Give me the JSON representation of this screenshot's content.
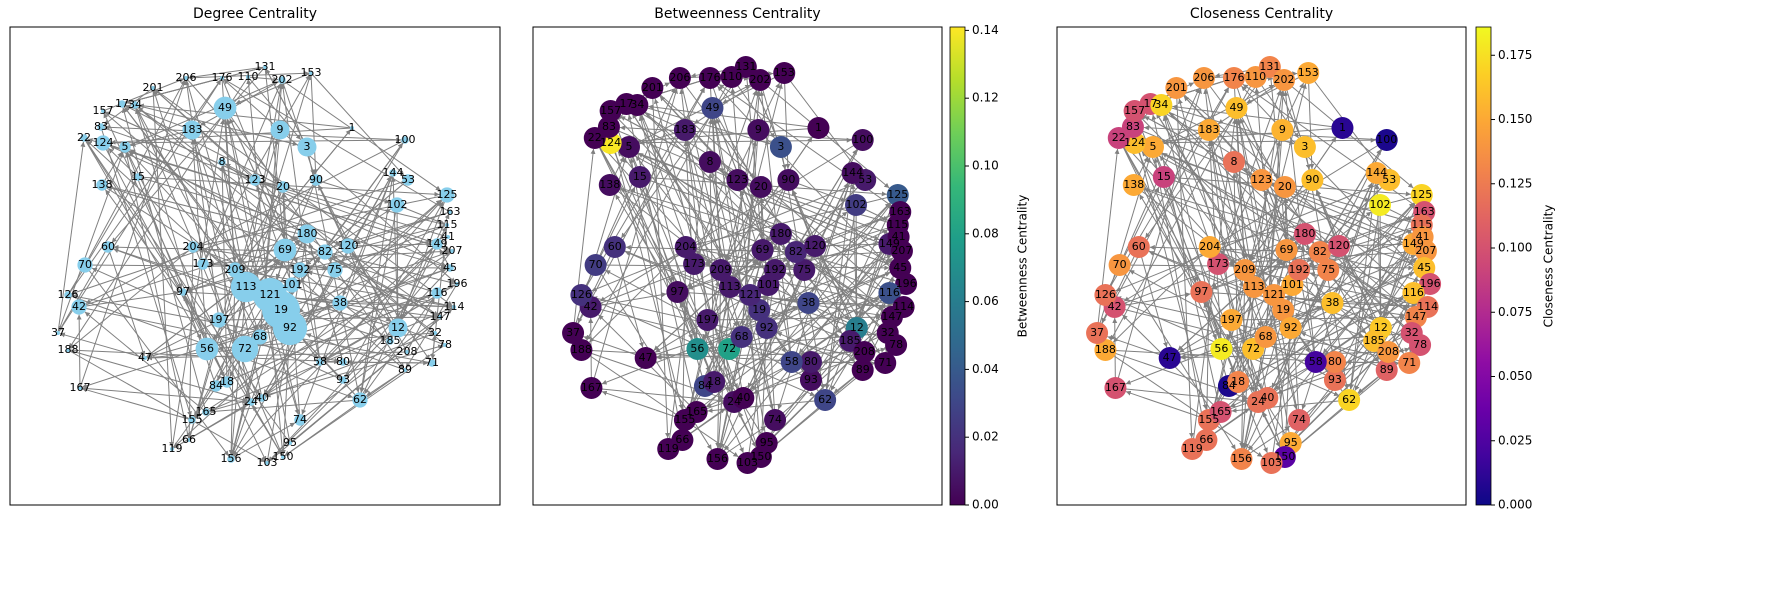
{
  "chart_data": [
    {
      "type": "network",
      "title": "Degree Centrality",
      "categories": [
        "49",
        "9",
        "3",
        "183",
        "8",
        "123",
        "20",
        "90",
        "1",
        "53",
        "144",
        "102",
        "125",
        "163",
        "115",
        "149",
        "41",
        "207",
        "45",
        "196",
        "116",
        "114",
        "147",
        "32",
        "78",
        "71",
        "89",
        "12",
        "185",
        "208",
        "62",
        "93",
        "80",
        "58",
        "74",
        "95",
        "150",
        "103",
        "156",
        "119",
        "66",
        "155",
        "165",
        "84",
        "18",
        "24",
        "40",
        "56",
        "72",
        "68",
        "197",
        "97",
        "42",
        "126",
        "70",
        "60",
        "138",
        "15",
        "5",
        "124",
        "83",
        "22",
        "17",
        "34",
        "157",
        "201",
        "206",
        "176",
        "110",
        "131",
        "202",
        "153",
        "19",
        "92",
        "121",
        "113",
        "101",
        "38",
        "75",
        "82",
        "120",
        "180",
        "69",
        "192",
        "209",
        "173",
        "204",
        "100",
        "188",
        "167",
        "37",
        "47"
      ],
      "values": [
        0.03,
        0.025,
        0.025,
        0.025,
        0.01,
        0.015,
        0.015,
        0.015,
        0.005,
        0.015,
        0.01,
        0.02,
        0.02,
        0.005,
        0.005,
        0.015,
        0.005,
        0.005,
        0.01,
        0.005,
        0.015,
        0.005,
        0.005,
        0.005,
        0.005,
        0.01,
        0.005,
        0.025,
        0.01,
        0.005,
        0.02,
        0.01,
        0.01,
        0.01,
        0.015,
        0.005,
        0.005,
        0.005,
        0.01,
        0.005,
        0.005,
        0.01,
        0.01,
        0.015,
        0.015,
        0.01,
        0.01,
        0.03,
        0.035,
        0.02,
        0.02,
        0.01,
        0.02,
        0.01,
        0.02,
        0.015,
        0.015,
        0.01,
        0.015,
        0.02,
        0.01,
        0.01,
        0.01,
        0.01,
        0.005,
        0.005,
        0.005,
        0.005,
        0.005,
        0.005,
        0.01,
        0.005,
        0.05,
        0.045,
        0.045,
        0.04,
        0.02,
        0.02,
        0.02,
        0.02,
        0.02,
        0.025,
        0.03,
        0.02,
        0.02,
        0.015,
        0.015,
        0.01,
        0.005,
        0.005,
        0.005,
        0.005
      ],
      "color": "#87ceeb",
      "edge_color": "#808080"
    },
    {
      "type": "network",
      "title": "Betweenness Centrality",
      "categories": [
        "49",
        "9",
        "3",
        "183",
        "8",
        "123",
        "20",
        "90",
        "1",
        "53",
        "144",
        "102",
        "125",
        "163",
        "115",
        "149",
        "41",
        "207",
        "45",
        "196",
        "116",
        "114",
        "147",
        "32",
        "78",
        "71",
        "89",
        "12",
        "185",
        "208",
        "62",
        "93",
        "80",
        "58",
        "74",
        "95",
        "150",
        "103",
        "156",
        "119",
        "66",
        "155",
        "165",
        "84",
        "18",
        "24",
        "40",
        "56",
        "72",
        "68",
        "197",
        "97",
        "42",
        "126",
        "70",
        "60",
        "138",
        "15",
        "5",
        "124",
        "83",
        "22",
        "17",
        "34",
        "157",
        "201",
        "206",
        "176",
        "110",
        "131",
        "202",
        "153",
        "19",
        "92",
        "121",
        "113",
        "101",
        "38",
        "75",
        "82",
        "120",
        "180",
        "69",
        "192",
        "209",
        "173",
        "204",
        "100",
        "188",
        "167",
        "37",
        "47"
      ],
      "values": [
        0.03,
        0.005,
        0.035,
        0.01,
        0.005,
        0.005,
        0.005,
        0.005,
        0,
        0.01,
        0.005,
        0.025,
        0.04,
        0,
        0,
        0.01,
        0,
        0,
        0,
        0,
        0.035,
        0,
        0,
        0,
        0,
        0,
        0,
        0.06,
        0.01,
        0,
        0.03,
        0.005,
        0.01,
        0.03,
        0.005,
        0,
        0,
        0,
        0,
        0,
        0,
        0,
        0,
        0.03,
        0.01,
        0.005,
        0,
        0.07,
        0.08,
        0.02,
        0.01,
        0.005,
        0.01,
        0.02,
        0.025,
        0.02,
        0.005,
        0.01,
        0.005,
        0.14,
        0,
        0,
        0,
        0,
        0,
        0,
        0,
        0,
        0,
        0,
        0,
        0,
        0.02,
        0.02,
        0.015,
        0.01,
        0.01,
        0.03,
        0.01,
        0.015,
        0.01,
        0.01,
        0.01,
        0.01,
        0.01,
        0.01,
        0.01,
        0.005,
        0,
        0,
        0,
        0
      ],
      "colormap": "viridis",
      "edge_color": "#808080",
      "colorbar_label": "Betweenness Centrality",
      "ylim": [
        0,
        0.141
      ],
      "yticks": [
        {
          "value": 0,
          "label": "0.00"
        },
        {
          "value": 0.02,
          "label": "0.02"
        },
        {
          "value": 0.04,
          "label": "0.04"
        },
        {
          "value": 0.06,
          "label": "0.06"
        },
        {
          "value": 0.08,
          "label": "0.08"
        },
        {
          "value": 0.1,
          "label": "0.10"
        },
        {
          "value": 0.12,
          "label": "0.12"
        },
        {
          "value": 0.14,
          "label": "0.14"
        }
      ]
    },
    {
      "type": "network",
      "title": "Closeness Centrality",
      "categories": [
        "49",
        "9",
        "3",
        "183",
        "8",
        "123",
        "20",
        "90",
        "1",
        "53",
        "144",
        "102",
        "125",
        "163",
        "115",
        "149",
        "41",
        "207",
        "45",
        "196",
        "116",
        "114",
        "147",
        "32",
        "78",
        "71",
        "89",
        "12",
        "185",
        "208",
        "62",
        "93",
        "80",
        "58",
        "74",
        "95",
        "150",
        "103",
        "156",
        "119",
        "66",
        "155",
        "165",
        "84",
        "18",
        "24",
        "40",
        "56",
        "72",
        "68",
        "197",
        "97",
        "42",
        "126",
        "70",
        "60",
        "138",
        "15",
        "5",
        "124",
        "83",
        "22",
        "17",
        "34",
        "157",
        "201",
        "206",
        "176",
        "110",
        "131",
        "202",
        "153",
        "19",
        "92",
        "121",
        "113",
        "101",
        "38",
        "75",
        "82",
        "120",
        "180",
        "69",
        "192",
        "209",
        "173",
        "204",
        "100",
        "188",
        "167",
        "37",
        "47"
      ],
      "values": [
        0.16,
        0.155,
        0.16,
        0.15,
        0.12,
        0.14,
        0.14,
        0.16,
        0.01,
        0.16,
        0.15,
        0.18,
        0.17,
        0.1,
        0.12,
        0.15,
        0.14,
        0.14,
        0.16,
        0.1,
        0.16,
        0.12,
        0.13,
        0.1,
        0.1,
        0.13,
        0.11,
        0.165,
        0.16,
        0.14,
        0.17,
        0.12,
        0.13,
        0.02,
        0.11,
        0.15,
        0.03,
        0.12,
        0.13,
        0.12,
        0.12,
        0.12,
        0.1,
        0.005,
        0.13,
        0.12,
        0.12,
        0.18,
        0.16,
        0.14,
        0.15,
        0.12,
        0.1,
        0.12,
        0.14,
        0.12,
        0.15,
        0.09,
        0.15,
        0.16,
        0.09,
        0.09,
        0.1,
        0.17,
        0.1,
        0.14,
        0.14,
        0.13,
        0.14,
        0.13,
        0.14,
        0.15,
        0.14,
        0.15,
        0.14,
        0.14,
        0.15,
        0.16,
        0.13,
        0.13,
        0.1,
        0.1,
        0.14,
        0.12,
        0.14,
        0.1,
        0.15,
        0.005,
        0.15,
        0.1,
        0.12,
        0.01
      ],
      "colormap": "plasma",
      "edge_color": "#808080",
      "colorbar_label": "Closeness Centrality",
      "ylim": [
        0,
        0.186
      ],
      "yticks": [
        {
          "value": 0,
          "label": "0.000"
        },
        {
          "value": 0.025,
          "label": "0.025"
        },
        {
          "value": 0.05,
          "label": "0.050"
        },
        {
          "value": 0.075,
          "label": "0.075"
        },
        {
          "value": 0.1,
          "label": "0.100"
        },
        {
          "value": 0.125,
          "label": "0.125"
        },
        {
          "value": 0.15,
          "label": "0.150"
        },
        {
          "value": 0.175,
          "label": "0.175"
        }
      ]
    }
  ]
}
